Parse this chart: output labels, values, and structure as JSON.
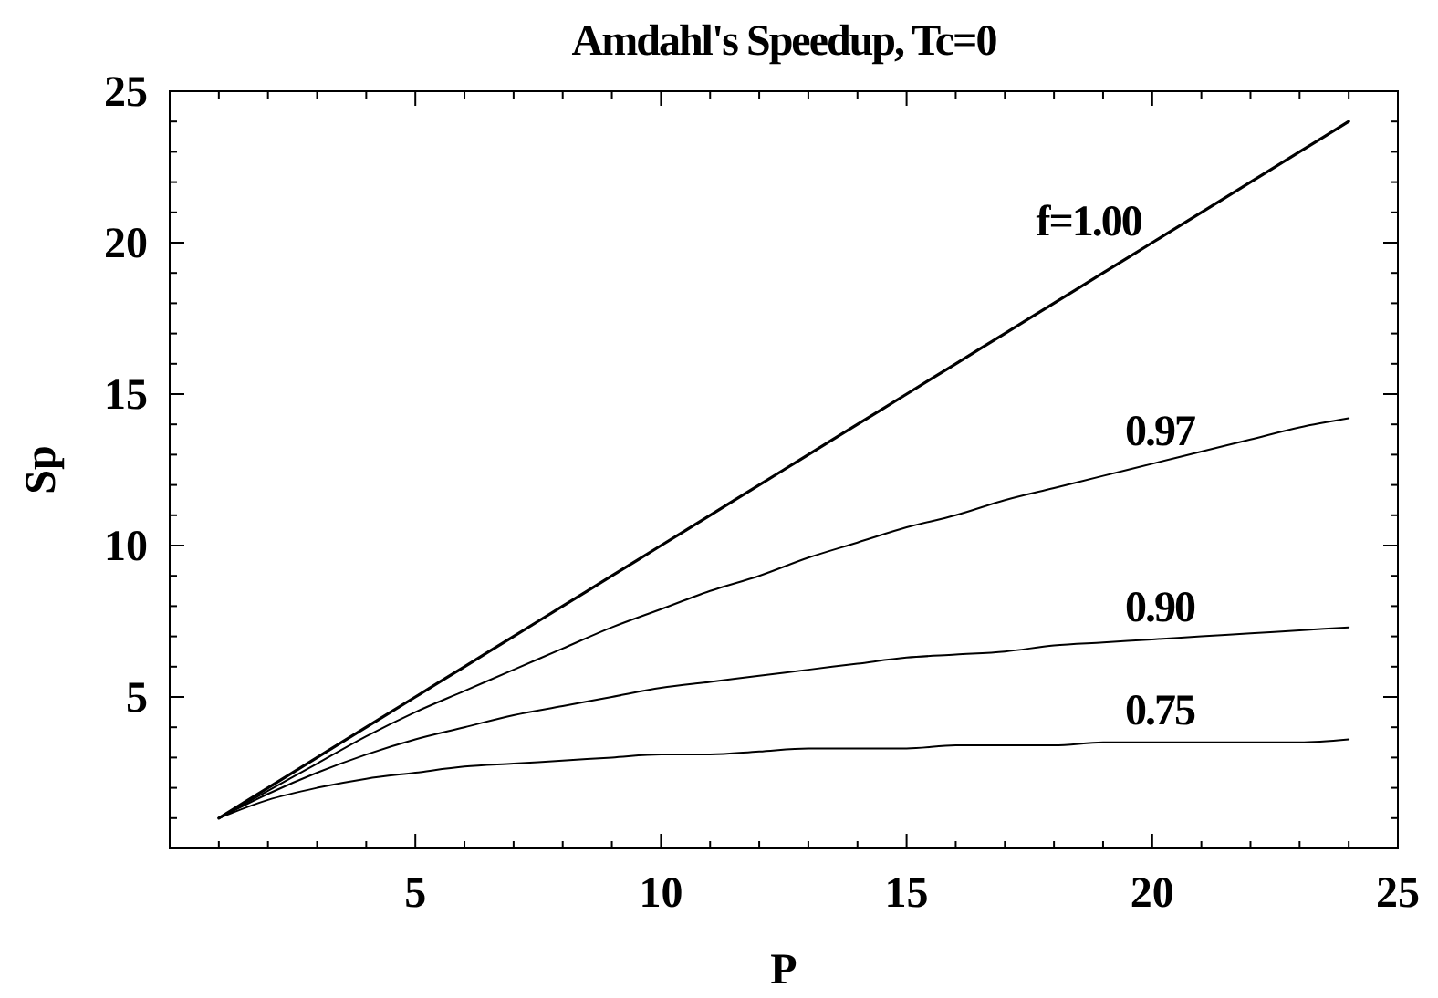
{
  "chart_data": {
    "type": "line",
    "title": "Amdahl's Speedup, Tc=0",
    "xlabel": "P",
    "ylabel": "Sp",
    "x": [
      1,
      2,
      3,
      4,
      5,
      6,
      7,
      8,
      9,
      10,
      11,
      12,
      13,
      14,
      15,
      16,
      17,
      18,
      19,
      20,
      21,
      22,
      23,
      24
    ],
    "series": [
      {
        "name": "f=1.00",
        "color": "#000000",
        "values": [
          1,
          2,
          3,
          4,
          5,
          6,
          7,
          8,
          9,
          10,
          11,
          12,
          13,
          14,
          15,
          16,
          17,
          18,
          19,
          20,
          21,
          22,
          23,
          24
        ]
      },
      {
        "name": "0.97",
        "color": "#000000",
        "values": [
          1,
          1.9,
          2.8,
          3.7,
          4.5,
          5.2,
          5.9,
          6.6,
          7.3,
          7.9,
          8.5,
          9.0,
          9.6,
          10.1,
          10.6,
          11.0,
          11.5,
          11.9,
          12.3,
          12.7,
          13.1,
          13.5,
          13.9,
          14.2
        ]
      },
      {
        "name": "0.90",
        "color": "#000000",
        "values": [
          1,
          1.8,
          2.5,
          3.1,
          3.6,
          4.0,
          4.4,
          4.7,
          5.0,
          5.3,
          5.5,
          5.7,
          5.9,
          6.1,
          6.3,
          6.4,
          6.5,
          6.7,
          6.8,
          6.9,
          7.0,
          7.1,
          7.2,
          7.3
        ]
      },
      {
        "name": "0.75",
        "color": "#000000",
        "values": [
          1,
          1.6,
          2.0,
          2.3,
          2.5,
          2.7,
          2.8,
          2.9,
          3.0,
          3.1,
          3.1,
          3.2,
          3.3,
          3.3,
          3.3,
          3.4,
          3.4,
          3.4,
          3.5,
          3.5,
          3.5,
          3.5,
          3.5,
          3.6
        ]
      }
    ],
    "xlim": [
      0,
      25
    ],
    "ylim": [
      0,
      25
    ],
    "xticks": [
      {
        "value": 1,
        "label": null
      },
      {
        "value": 2,
        "label": null
      },
      {
        "value": 3,
        "label": null
      },
      {
        "value": 4,
        "label": null
      },
      5,
      {
        "value": 6,
        "label": null
      },
      {
        "value": 7,
        "label": null
      },
      {
        "value": 8,
        "label": null
      },
      {
        "value": 9,
        "label": null
      },
      10,
      {
        "value": 11,
        "label": null
      },
      {
        "value": 12,
        "label": null
      },
      {
        "value": 13,
        "label": null
      },
      {
        "value": 14,
        "label": null
      },
      15,
      {
        "value": 16,
        "label": null
      },
      {
        "value": 17,
        "label": null
      },
      {
        "value": 18,
        "label": null
      },
      {
        "value": 19,
        "label": null
      },
      20,
      {
        "value": 21,
        "label": null
      },
      {
        "value": 22,
        "label": null
      },
      {
        "value": 23,
        "label": null
      },
      {
        "value": 24,
        "label": null
      },
      25
    ],
    "yticks": [
      {
        "value": 1,
        "label": null
      },
      {
        "value": 2,
        "label": null
      },
      {
        "value": 3,
        "label": null
      },
      {
        "value": 4,
        "label": null
      },
      5,
      {
        "value": 6,
        "label": null
      },
      {
        "value": 7,
        "label": null
      },
      {
        "value": 8,
        "label": null
      },
      {
        "value": 9,
        "label": null
      },
      10,
      {
        "value": 11,
        "label": null
      },
      {
        "value": 12,
        "label": null
      },
      {
        "value": 13,
        "label": null
      },
      {
        "value": 14,
        "label": null
      },
      15,
      {
        "value": 16,
        "label": null
      },
      {
        "value": 17,
        "label": null
      },
      {
        "value": 18,
        "label": null
      },
      {
        "value": 19,
        "label": null
      },
      20,
      {
        "value": 21,
        "label": null
      },
      {
        "value": 22,
        "label": null
      },
      {
        "value": 23,
        "label": null
      },
      {
        "value": 24,
        "label": null
      },
      25
    ],
    "grid": false,
    "legend": false,
    "marker": "none",
    "line_style": "solid"
  }
}
